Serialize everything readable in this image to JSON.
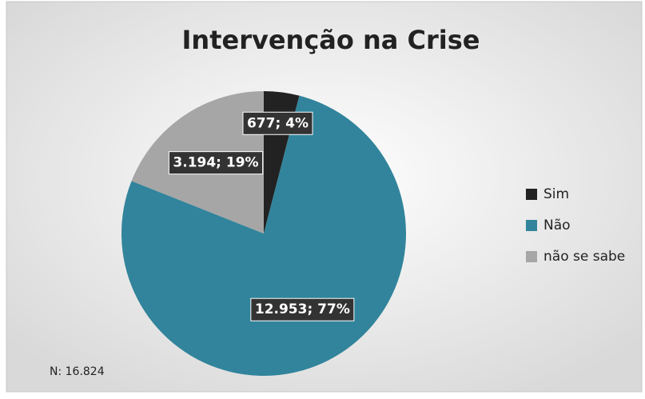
{
  "chart_data": {
    "type": "pie",
    "title": "Intervenção na Crise",
    "categories": [
      "Sim",
      "Não",
      "não se sabe"
    ],
    "values": [
      677,
      12953,
      3194
    ],
    "value_labels": [
      "677; 4%",
      "12.953; 77%",
      "3.194; 19%"
    ],
    "colors": [
      "#222222",
      "#31849b",
      "#a6a6a6"
    ],
    "legend": "right",
    "annotation": "N: 16.824"
  }
}
